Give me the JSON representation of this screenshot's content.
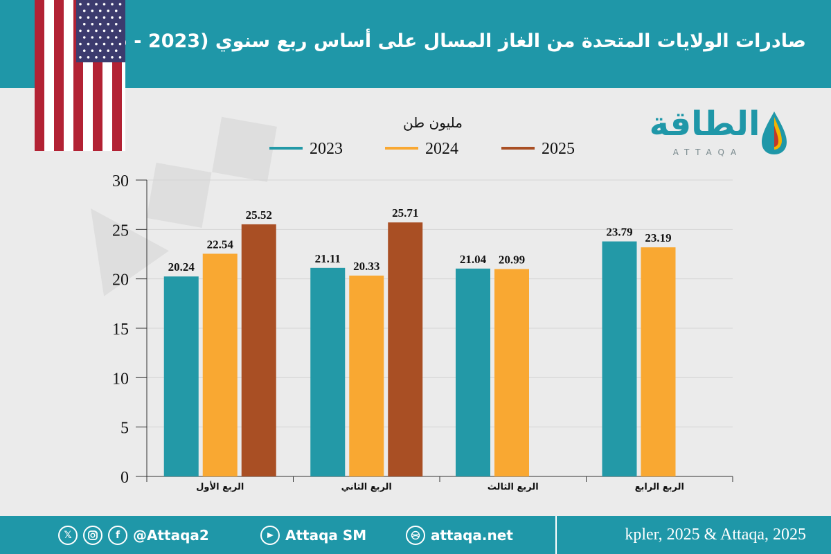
{
  "header": {
    "title": "صادرات الولايات المتحدة من الغاز المسال على أساس ربع سنوي (2023 - 2025)"
  },
  "logo": {
    "text": "الطاقة",
    "sub": "ATTAQA"
  },
  "footer": {
    "handle": "@Attaqa2",
    "youtube": "Attaqa SM",
    "website": "attaqa.net",
    "source": "kpler, 2025 & Attaqa, 2025",
    "x_glyph": "𝕏",
    "facebook_glyph": "f"
  },
  "colors": {
    "accent": "#1f97a8",
    "s2023": "#2399a7",
    "s2024": "#f9a832",
    "s2025": "#a94f24"
  },
  "chart_data": {
    "type": "bar",
    "unit_label": "مليون طن",
    "categories": [
      "الربع الأول",
      "الربع الثاني",
      "الربع الثالث",
      "الربع الرابع"
    ],
    "series": [
      {
        "name": "2023",
        "color": "#2399a7",
        "values": [
          20.24,
          21.11,
          21.04,
          23.79
        ]
      },
      {
        "name": "2024",
        "color": "#f9a832",
        "values": [
          22.54,
          20.33,
          20.99,
          23.19
        ]
      },
      {
        "name": "2025",
        "color": "#a94f24",
        "values": [
          25.52,
          25.71,
          null,
          null
        ]
      }
    ],
    "ylim": [
      0,
      30
    ],
    "yticks": [
      0,
      5,
      10,
      15,
      20,
      25,
      30
    ],
    "grid": true,
    "legend_position": "top"
  }
}
